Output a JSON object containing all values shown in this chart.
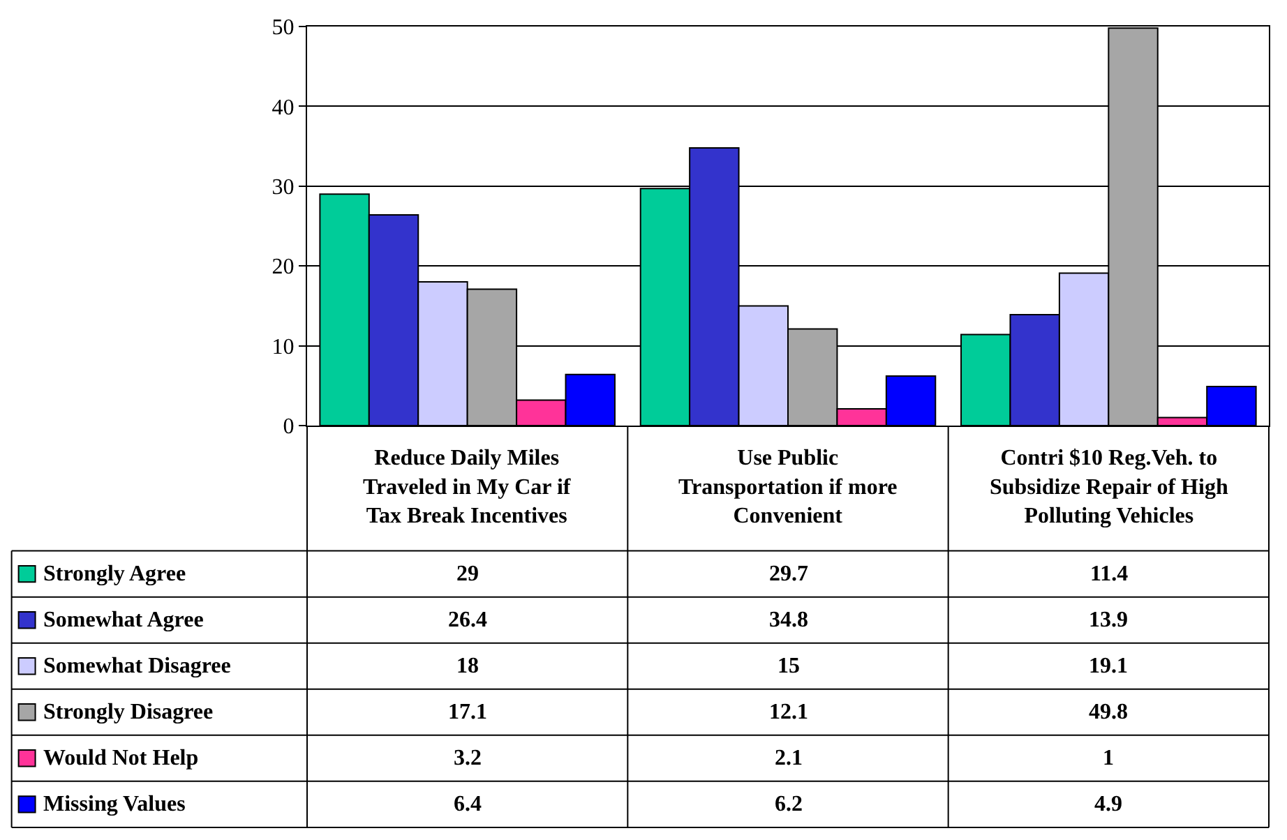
{
  "chart_data": {
    "type": "bar",
    "categories": [
      "Reduce Daily Miles Traveled in My Car if Tax Break Incentives",
      "Use Public Transportation if more Convenient",
      "Contri $10 Reg.Veh. to Subsidize Repair of High Polluting Vehicles"
    ],
    "series": [
      {
        "name": "Strongly Agree",
        "color": "#00cc99",
        "values": [
          29,
          29.7,
          11.4
        ]
      },
      {
        "name": "Somewhat Agree",
        "color": "#3333cc",
        "values": [
          26.4,
          34.8,
          13.9
        ]
      },
      {
        "name": "Somewhat Disagree",
        "color": "#ccccff",
        "values": [
          18,
          15,
          19.1
        ]
      },
      {
        "name": "Strongly Disagree",
        "color": "#a6a6a6",
        "values": [
          17.1,
          12.1,
          49.8
        ]
      },
      {
        "name": "Would Not Help",
        "color": "#ff3399",
        "values": [
          3.2,
          2.1,
          1
        ]
      },
      {
        "name": "Missing Values",
        "color": "#0000ff",
        "values": [
          6.4,
          6.2,
          4.9
        ]
      }
    ],
    "legend": "bottom left",
    "ylim": [
      0,
      50
    ],
    "yticks": [
      0,
      10,
      20,
      30,
      40,
      50
    ],
    "grid": "y",
    "data_labels": true
  }
}
